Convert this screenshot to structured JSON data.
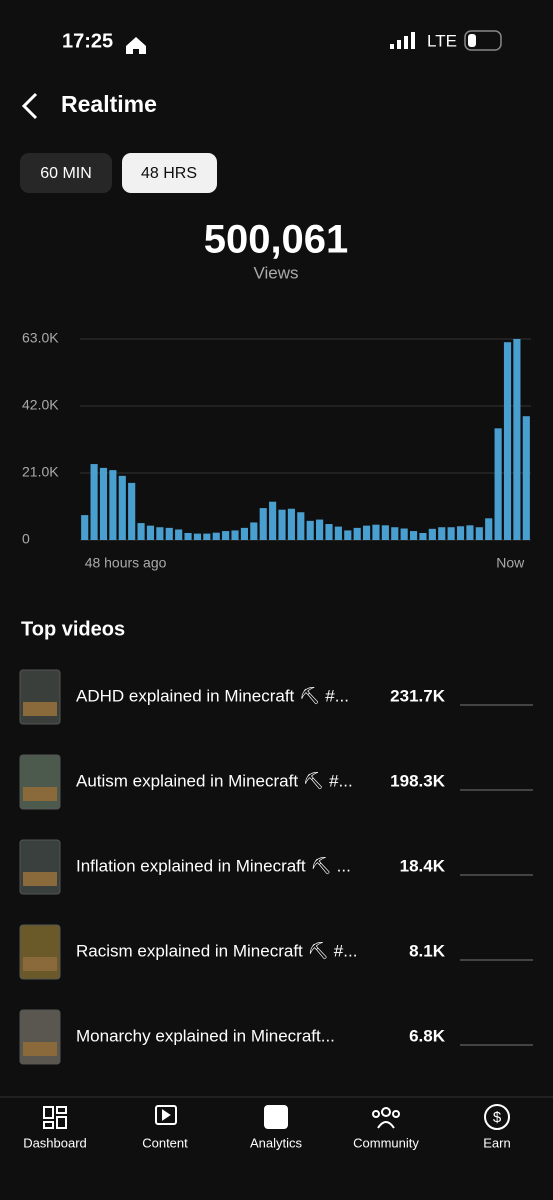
{
  "status_bar": {
    "time": "17:25",
    "network": "LTE"
  },
  "header": {
    "title": "Realtime"
  },
  "tabs": [
    "60 MIN",
    "48 HRS"
  ],
  "summary": {
    "total": "500,061",
    "label": "Views"
  },
  "chart_data": {
    "type": "bar",
    "categories": [
      "48 hours ago",
      null,
      null,
      null,
      null,
      null,
      null,
      null,
      null,
      null,
      null,
      null,
      null,
      null,
      null,
      null,
      null,
      null,
      null,
      null,
      null,
      null,
      null,
      null,
      null,
      null,
      null,
      null,
      null,
      null,
      null,
      null,
      null,
      null,
      null,
      null,
      null,
      null,
      null,
      null,
      null,
      null,
      null,
      null,
      null,
      null,
      null,
      "Now"
    ],
    "values": [
      7800,
      23800,
      22600,
      21900,
      20100,
      17900,
      5300,
      4500,
      4000,
      3800,
      3300,
      2200,
      2000,
      2000,
      2300,
      2800,
      3000,
      3800,
      5500,
      10000,
      12000,
      9500,
      9800,
      8700,
      6000,
      6400,
      5000,
      4200,
      3000,
      3800,
      4500,
      4800,
      4600,
      4000,
      3600,
      2800,
      2200,
      3500,
      4000,
      4000,
      4300,
      4600,
      4000,
      6800,
      35000,
      62000,
      63000,
      38800
    ],
    "color": "#4a9fd1",
    "ylim": [
      0,
      63000
    ],
    "yticks": [
      {
        "value": 0,
        "label": "0"
      },
      {
        "value": 21000,
        "label": "21.0K"
      },
      {
        "value": 42000,
        "label": "42.0K"
      },
      {
        "value": 63000,
        "label": "63.0K"
      }
    ],
    "grid": true
  },
  "section_title": "Top videos",
  "videos": [
    {
      "title": "ADHD explained in Minecraft ⛏ #...",
      "views": "231.7K"
    },
    {
      "title": "Autism explained in Minecraft ⛏ #...",
      "views": "198.3K"
    },
    {
      "title": "Inflation explained in Minecraft ⛏ ...",
      "views": "18.4K"
    },
    {
      "title": "Racism explained in Minecraft ⛏ #...",
      "views": "8.1K"
    },
    {
      "title": "Monarchy explained in Minecraft...",
      "views": "6.8K"
    }
  ],
  "nav": [
    "Dashboard",
    "Content",
    "Analytics",
    "Community",
    "Earn"
  ]
}
